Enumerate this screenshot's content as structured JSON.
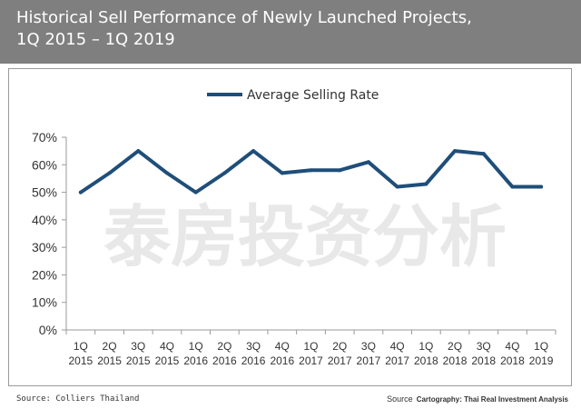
{
  "header": {
    "title_line1": "Historical Sell Performance of Newly Launched Projects,",
    "title_line2": "1Q 2015 – 1Q 2019"
  },
  "watermark": "泰房投资分析",
  "footer": {
    "left": "Source: Colliers Thailand",
    "right_source": "Source",
    "right_cartography": "Cartography: Thai Real Investment Analysis"
  },
  "colors": {
    "header_bg": "#7f7f7f",
    "line": "#1f4e79"
  },
  "chart_data": {
    "type": "line",
    "title": "",
    "xlabel": "",
    "ylabel": "",
    "legend_position": "top",
    "grid": false,
    "ylim": [
      0,
      70
    ],
    "y_ticks": [
      "0%",
      "10%",
      "20%",
      "30%",
      "40%",
      "50%",
      "60%",
      "70%"
    ],
    "categories": [
      [
        "1Q",
        "2015"
      ],
      [
        "2Q",
        "2015"
      ],
      [
        "3Q",
        "2015"
      ],
      [
        "4Q",
        "2015"
      ],
      [
        "1Q",
        "2016"
      ],
      [
        "2Q",
        "2016"
      ],
      [
        "3Q",
        "2016"
      ],
      [
        "4Q",
        "2016"
      ],
      [
        "1Q",
        "2017"
      ],
      [
        "2Q",
        "2017"
      ],
      [
        "3Q",
        "2017"
      ],
      [
        "4Q",
        "2017"
      ],
      [
        "1Q",
        "2018"
      ],
      [
        "2Q",
        "2018"
      ],
      [
        "3Q",
        "2018"
      ],
      [
        "4Q",
        "2018"
      ],
      [
        "1Q",
        "2019"
      ]
    ],
    "series": [
      {
        "name": "Average Selling Rate",
        "color": "#1f4e79",
        "values": [
          50,
          57,
          65,
          57,
          50,
          57,
          65,
          57,
          58,
          58,
          61,
          52,
          53,
          65,
          64,
          52,
          52
        ]
      }
    ]
  }
}
